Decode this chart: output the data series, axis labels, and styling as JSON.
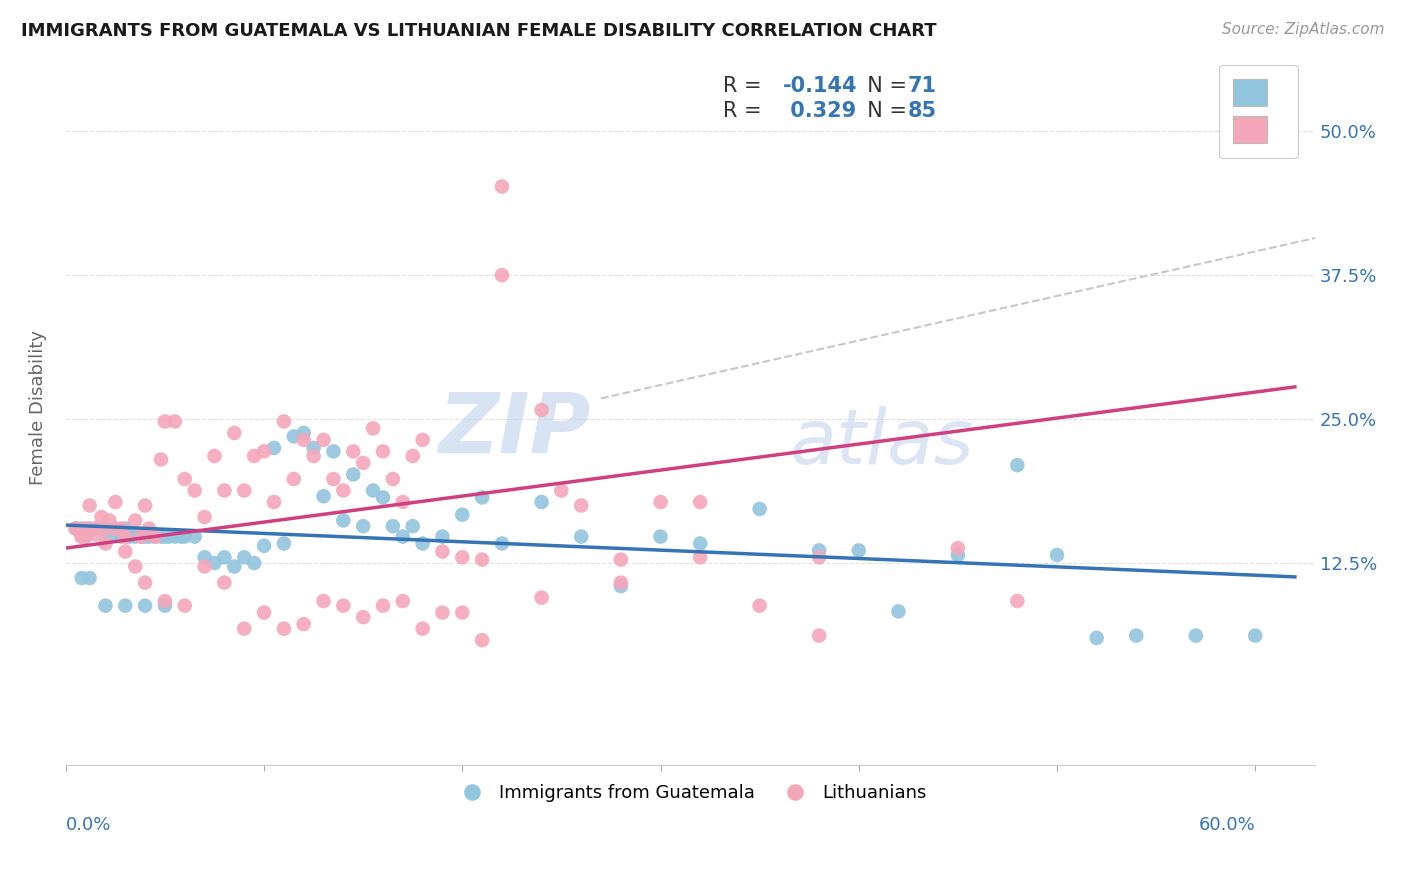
{
  "title": "IMMIGRANTS FROM GUATEMALA VS LITHUANIAN FEMALE DISABILITY CORRELATION CHART",
  "source": "Source: ZipAtlas.com",
  "ylabel": "Female Disability",
  "ytick_labels": [
    "12.5%",
    "25.0%",
    "37.5%",
    "50.0%"
  ],
  "ytick_values": [
    0.125,
    0.25,
    0.375,
    0.5
  ],
  "xlim": [
    0.0,
    0.63
  ],
  "ylim": [
    -0.05,
    0.57
  ],
  "blue_color": "#92c5de",
  "pink_color": "#f4a7b9",
  "blue_line_color": "#3575b5",
  "pink_line_color": "#d04080",
  "dashed_line_color": "#c8c8c8",
  "watermark_text": "ZIP",
  "watermark_text2": "atlas",
  "legend_text_color": "#333333",
  "legend_val_color": "#3575b5",
  "blue_scatter_x": [
    0.005,
    0.008,
    0.01,
    0.012,
    0.015,
    0.018,
    0.02,
    0.022,
    0.025,
    0.028,
    0.03,
    0.032,
    0.035,
    0.038,
    0.04,
    0.042,
    0.045,
    0.048,
    0.05,
    0.052,
    0.055,
    0.058,
    0.06,
    0.065,
    0.07,
    0.075,
    0.08,
    0.085,
    0.09,
    0.095,
    0.1,
    0.105,
    0.11,
    0.115,
    0.12,
    0.125,
    0.13,
    0.135,
    0.14,
    0.145,
    0.15,
    0.155,
    0.16,
    0.165,
    0.17,
    0.175,
    0.18,
    0.19,
    0.2,
    0.21,
    0.22,
    0.24,
    0.26,
    0.28,
    0.3,
    0.32,
    0.35,
    0.38,
    0.4,
    0.42,
    0.45,
    0.48,
    0.5,
    0.52,
    0.54,
    0.57,
    0.6,
    0.008,
    0.012,
    0.02,
    0.03,
    0.04,
    0.05
  ],
  "blue_scatter_y": [
    0.155,
    0.155,
    0.148,
    0.155,
    0.155,
    0.155,
    0.155,
    0.148,
    0.155,
    0.148,
    0.155,
    0.148,
    0.148,
    0.148,
    0.148,
    0.148,
    0.148,
    0.148,
    0.148,
    0.148,
    0.148,
    0.148,
    0.148,
    0.148,
    0.13,
    0.125,
    0.13,
    0.122,
    0.13,
    0.125,
    0.14,
    0.225,
    0.142,
    0.235,
    0.238,
    0.225,
    0.183,
    0.222,
    0.162,
    0.202,
    0.157,
    0.188,
    0.182,
    0.157,
    0.148,
    0.157,
    0.142,
    0.148,
    0.167,
    0.182,
    0.142,
    0.178,
    0.148,
    0.105,
    0.148,
    0.142,
    0.172,
    0.136,
    0.136,
    0.083,
    0.132,
    0.21,
    0.132,
    0.06,
    0.062,
    0.062,
    0.062,
    0.112,
    0.112,
    0.088,
    0.088,
    0.088,
    0.088
  ],
  "pink_scatter_x": [
    0.005,
    0.008,
    0.01,
    0.012,
    0.015,
    0.018,
    0.02,
    0.022,
    0.025,
    0.028,
    0.03,
    0.035,
    0.038,
    0.04,
    0.042,
    0.045,
    0.048,
    0.05,
    0.055,
    0.06,
    0.065,
    0.07,
    0.075,
    0.08,
    0.085,
    0.09,
    0.095,
    0.1,
    0.105,
    0.11,
    0.115,
    0.12,
    0.125,
    0.13,
    0.135,
    0.14,
    0.145,
    0.15,
    0.155,
    0.16,
    0.165,
    0.17,
    0.175,
    0.18,
    0.19,
    0.2,
    0.21,
    0.22,
    0.24,
    0.26,
    0.28,
    0.3,
    0.32,
    0.35,
    0.38,
    0.005,
    0.008,
    0.01,
    0.015,
    0.02,
    0.025,
    0.03,
    0.035,
    0.04,
    0.045,
    0.05,
    0.06,
    0.07,
    0.08,
    0.09,
    0.1,
    0.11,
    0.12,
    0.13,
    0.14,
    0.15,
    0.16,
    0.17,
    0.18,
    0.19,
    0.2,
    0.21,
    0.22,
    0.24,
    0.25,
    0.28,
    0.32,
    0.38,
    0.45,
    0.48
  ],
  "pink_scatter_y": [
    0.155,
    0.148,
    0.148,
    0.175,
    0.155,
    0.165,
    0.155,
    0.162,
    0.178,
    0.155,
    0.148,
    0.162,
    0.148,
    0.175,
    0.155,
    0.148,
    0.215,
    0.248,
    0.248,
    0.198,
    0.188,
    0.165,
    0.218,
    0.188,
    0.238,
    0.188,
    0.218,
    0.222,
    0.178,
    0.248,
    0.198,
    0.232,
    0.218,
    0.232,
    0.198,
    0.188,
    0.222,
    0.212,
    0.242,
    0.222,
    0.198,
    0.178,
    0.218,
    0.232,
    0.135,
    0.13,
    0.128,
    0.375,
    0.095,
    0.175,
    0.128,
    0.178,
    0.13,
    0.088,
    0.062,
    0.155,
    0.148,
    0.155,
    0.15,
    0.142,
    0.155,
    0.135,
    0.122,
    0.108,
    0.148,
    0.092,
    0.088,
    0.122,
    0.108,
    0.068,
    0.082,
    0.068,
    0.072,
    0.092,
    0.088,
    0.078,
    0.088,
    0.092,
    0.068,
    0.082,
    0.082,
    0.058,
    0.452,
    0.258,
    0.188,
    0.108,
    0.178,
    0.13,
    0.138,
    0.092
  ]
}
